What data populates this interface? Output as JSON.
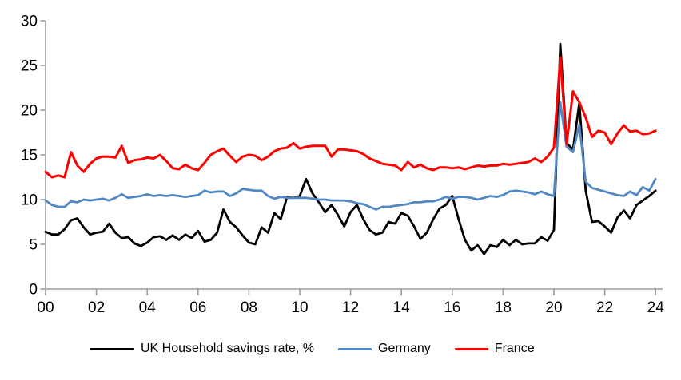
{
  "chart_data": {
    "type": "line",
    "title": "",
    "xlabel": "",
    "ylabel": "",
    "x_start_year": 2000,
    "x_step_years": 0.25,
    "x_axis": {
      "tick_labels": [
        "00",
        "02",
        "04",
        "06",
        "08",
        "10",
        "12",
        "14",
        "16",
        "18",
        "20",
        "22",
        "24"
      ],
      "tick_interval_years": 2
    },
    "y_axis": {
      "min": 0,
      "max": 30,
      "ticks": [
        0,
        5,
        10,
        15,
        20,
        25,
        30
      ]
    },
    "grid": false,
    "legend_position": "bottom",
    "axis_color": "#9c9c9c",
    "series": [
      {
        "name": "UK Household savings rate, %",
        "color": "#000000",
        "values": [
          6.4,
          6.1,
          6.1,
          6.7,
          7.7,
          7.9,
          6.9,
          6.1,
          6.3,
          6.4,
          7.3,
          6.3,
          5.7,
          5.8,
          5.1,
          4.8,
          5.2,
          5.8,
          5.9,
          5.5,
          6.0,
          5.5,
          6.1,
          5.7,
          6.5,
          5.3,
          5.5,
          6.3,
          8.9,
          7.5,
          6.9,
          6.0,
          5.2,
          5.0,
          6.9,
          6.3,
          8.5,
          7.8,
          10.3,
          10.2,
          10.4,
          12.3,
          10.7,
          9.7,
          8.6,
          9.4,
          8.3,
          7.0,
          8.6,
          9.4,
          7.8,
          6.6,
          6.1,
          6.3,
          7.5,
          7.3,
          8.5,
          8.2,
          7.0,
          5.6,
          6.3,
          7.8,
          9.0,
          9.4,
          10.4,
          7.8,
          5.5,
          4.3,
          4.9,
          3.9,
          4.9,
          4.7,
          5.5,
          4.9,
          5.5,
          5.0,
          5.1,
          5.1,
          5.8,
          5.4,
          6.6,
          27.4,
          16.3,
          15.6,
          20.8,
          11.0,
          7.5,
          7.6,
          7.0,
          6.3,
          8.0,
          8.8,
          7.9,
          9.4,
          9.9,
          10.4,
          11.0
        ]
      },
      {
        "name": "Germany",
        "color": "#5187c2",
        "values": [
          9.9,
          9.4,
          9.2,
          9.2,
          9.8,
          9.7,
          10.0,
          9.9,
          10.0,
          10.1,
          9.9,
          10.2,
          10.6,
          10.2,
          10.3,
          10.4,
          10.6,
          10.4,
          10.5,
          10.4,
          10.5,
          10.4,
          10.3,
          10.4,
          10.5,
          11.0,
          10.8,
          10.9,
          10.9,
          10.4,
          10.7,
          11.2,
          11.1,
          11.0,
          11.0,
          10.4,
          10.1,
          10.3,
          10.2,
          10.2,
          10.2,
          10.2,
          10.1,
          10.0,
          10.0,
          9.9,
          9.9,
          9.9,
          9.8,
          9.6,
          9.5,
          9.2,
          8.9,
          9.2,
          9.2,
          9.3,
          9.4,
          9.5,
          9.7,
          9.7,
          9.8,
          9.8,
          10.0,
          10.3,
          10.1,
          10.3,
          10.3,
          10.2,
          10.0,
          10.2,
          10.4,
          10.3,
          10.5,
          10.9,
          11.0,
          10.9,
          10.8,
          10.6,
          10.9,
          10.6,
          10.4,
          20.9,
          15.9,
          15.3,
          18.4,
          12.0,
          11.3,
          11.1,
          10.9,
          10.7,
          10.5,
          10.4,
          10.9,
          10.5,
          11.4,
          11.0,
          12.3
        ]
      },
      {
        "name": "France",
        "color": "#ff0000",
        "values": [
          13.1,
          12.5,
          12.7,
          12.5,
          15.3,
          13.8,
          13.1,
          14.0,
          14.6,
          14.8,
          14.8,
          14.7,
          16.0,
          14.1,
          14.4,
          14.5,
          14.7,
          14.6,
          15.0,
          14.3,
          13.5,
          13.4,
          13.9,
          13.5,
          13.3,
          14.1,
          15.0,
          15.4,
          15.7,
          14.9,
          14.2,
          14.8,
          15.0,
          14.9,
          14.4,
          14.8,
          15.4,
          15.7,
          15.8,
          16.3,
          15.7,
          15.9,
          16.0,
          16.0,
          16.0,
          14.8,
          15.6,
          15.6,
          15.5,
          15.4,
          15.1,
          14.6,
          14.3,
          14.0,
          13.9,
          13.8,
          13.3,
          14.2,
          13.6,
          13.9,
          13.5,
          13.3,
          13.6,
          13.6,
          13.5,
          13.6,
          13.4,
          13.6,
          13.8,
          13.7,
          13.8,
          13.8,
          14.0,
          13.9,
          14.0,
          14.1,
          14.2,
          14.6,
          14.2,
          14.8,
          15.8,
          25.9,
          16.2,
          22.1,
          20.9,
          19.2,
          17.0,
          17.7,
          17.5,
          16.2,
          17.4,
          18.3,
          17.6,
          17.7,
          17.3,
          17.4,
          17.7
        ]
      }
    ]
  }
}
